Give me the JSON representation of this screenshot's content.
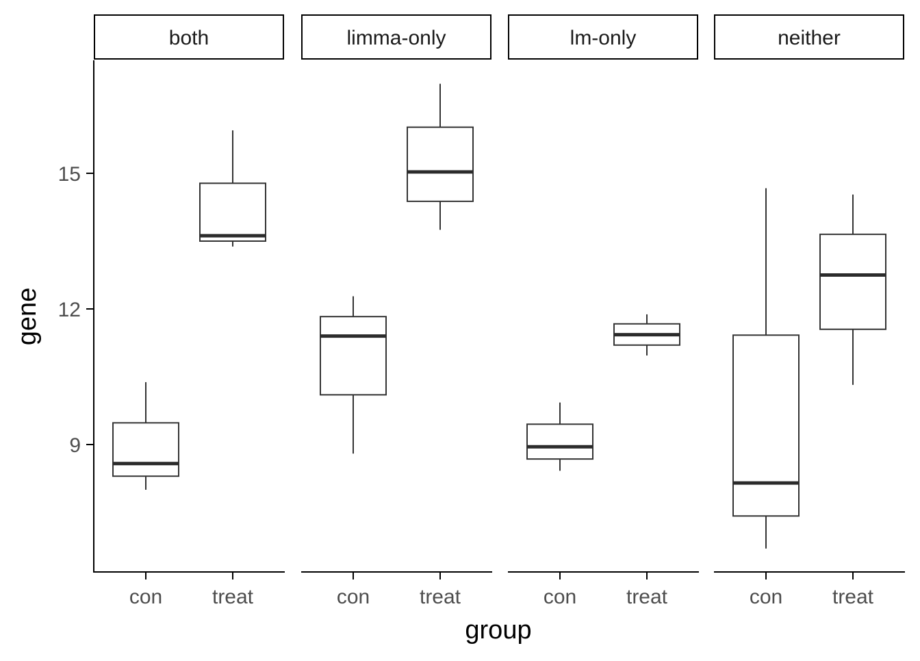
{
  "chart_data": {
    "type": "boxplot",
    "xlabel": "group",
    "ylabel": "gene",
    "ylim": [
      6.2,
      17.6
    ],
    "yticks": [
      9,
      12,
      15
    ],
    "categories": [
      "con",
      "treat"
    ],
    "facets": [
      {
        "label": "both",
        "boxes": [
          {
            "group": "con",
            "whisker_low": 8.0,
            "q1": 8.3,
            "median": 8.58,
            "q3": 9.48,
            "whisker_high": 10.38
          },
          {
            "group": "treat",
            "whisker_low": 13.38,
            "q1": 13.5,
            "median": 13.62,
            "q3": 14.78,
            "whisker_high": 15.95
          }
        ]
      },
      {
        "label": "limma-only",
        "boxes": [
          {
            "group": "con",
            "whisker_low": 8.8,
            "q1": 10.1,
            "median": 11.4,
            "q3": 11.83,
            "whisker_high": 12.28
          },
          {
            "group": "treat",
            "whisker_low": 13.75,
            "q1": 14.38,
            "median": 15.03,
            "q3": 16.02,
            "whisker_high": 16.98
          }
        ]
      },
      {
        "label": "lm-only",
        "boxes": [
          {
            "group": "con",
            "whisker_low": 8.42,
            "q1": 8.68,
            "median": 8.95,
            "q3": 9.45,
            "whisker_high": 9.93
          },
          {
            "group": "treat",
            "whisker_low": 10.97,
            "q1": 11.2,
            "median": 11.43,
            "q3": 11.67,
            "whisker_high": 11.88
          }
        ]
      },
      {
        "label": "neither",
        "boxes": [
          {
            "group": "con",
            "whisker_low": 6.7,
            "q1": 7.42,
            "median": 8.15,
            "q3": 11.42,
            "whisker_high": 14.67
          },
          {
            "group": "treat",
            "whisker_low": 10.32,
            "q1": 11.55,
            "median": 12.75,
            "q3": 13.65,
            "whisker_high": 14.53
          }
        ]
      }
    ],
    "colors": {
      "box_line": "#333333",
      "median_line": "#2b2b2b",
      "axis": "#000000",
      "tick_label": "#4d4d4d",
      "strip_border": "#000000",
      "strip_fill": "#ffffff"
    }
  }
}
